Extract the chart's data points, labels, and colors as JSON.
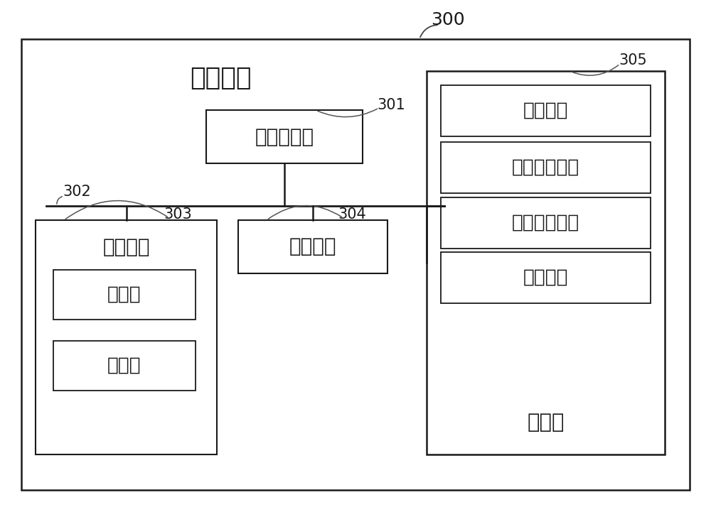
{
  "fig_bg_color": "#ffffff",
  "title_label": "300",
  "outer_box_label": "电子设备",
  "cpu_label": "中央处理器",
  "ui_label": "用户接口",
  "cam_label": "摄像头",
  "disp_label": "显示屏",
  "net_label": "网络接口",
  "mem_label": "存储器",
  "mem_row1_label": "操作系统",
  "mem_row2_label": "网络通信模块",
  "mem_row3_label": "用户接口模块",
  "mem_row4_label": "程序指令",
  "id_301": "301",
  "id_302": "302",
  "id_303": "303",
  "id_304": "304",
  "id_305": "305"
}
